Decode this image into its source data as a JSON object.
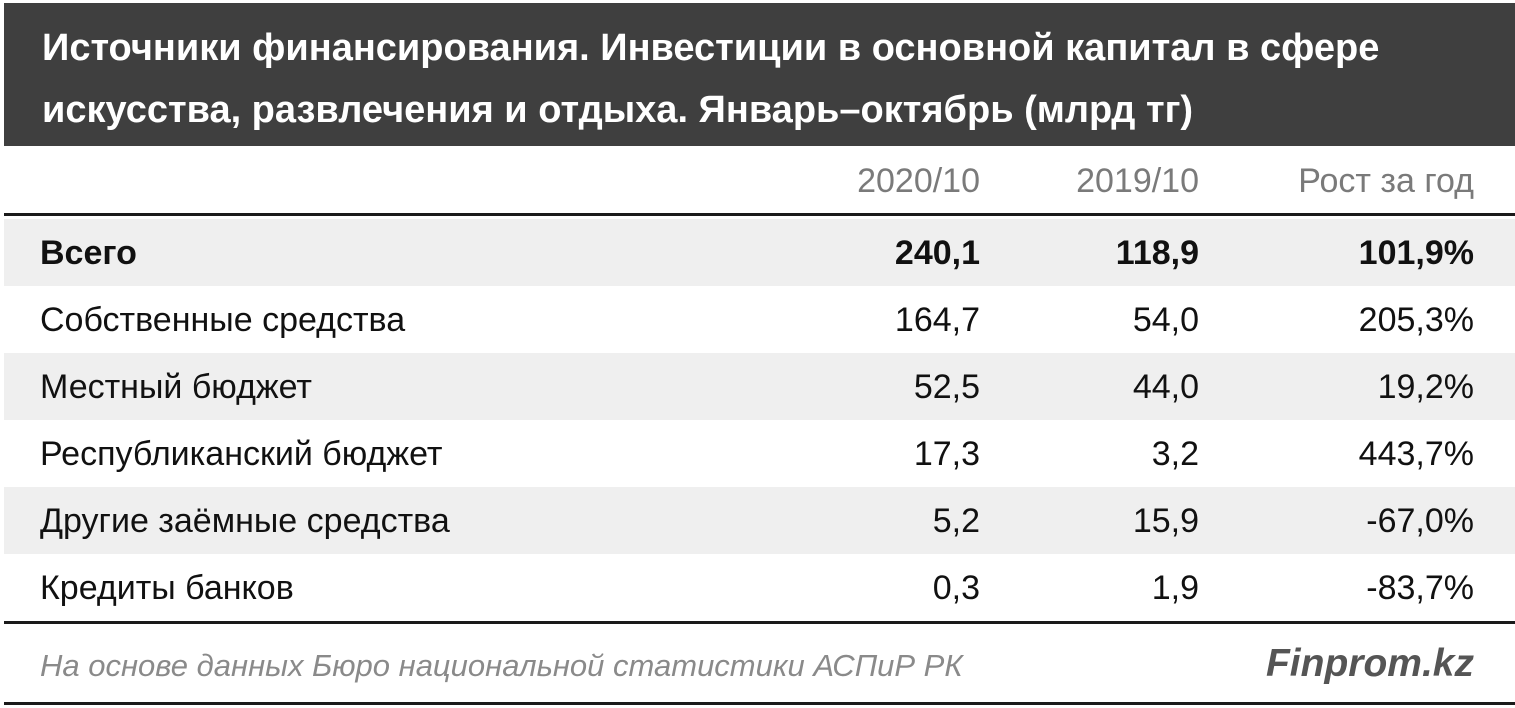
{
  "chart_data": {
    "type": "table",
    "title": "Источники финансирования. Инвестиции в основной капитал в сфере искусства, развлечения и отдыха. Январь–октябрь (млрд тг)",
    "columns": [
      "2020/10",
      "2019/10",
      "Рост за год"
    ],
    "rows": [
      {
        "label": "Всего",
        "v2020": "240,1",
        "v2019": "118,9",
        "growth": "101,9%",
        "bold": true
      },
      {
        "label": "Собственные средства",
        "v2020": "164,7",
        "v2019": "54,0",
        "growth": "205,3%"
      },
      {
        "label": "Местный бюджет",
        "v2020": "52,5",
        "v2019": "44,0",
        "growth": "19,2%"
      },
      {
        "label": "Республиканский бюджет",
        "v2020": "17,3",
        "v2019": "3,2",
        "growth": "443,7%"
      },
      {
        "label": "Другие заёмные средства",
        "v2020": "5,2",
        "v2019": "15,9",
        "growth": "-67,0%"
      },
      {
        "label": "Кредиты банков",
        "v2020": "0,3",
        "v2019": "1,9",
        "growth": "-83,7%"
      }
    ],
    "source": "На основе данных Бюро национальной статистики АСПиР РК",
    "brand": "Finprom.kz"
  },
  "colors": {
    "header_bg": "#3f3f3f",
    "row_shade": "#efefef",
    "rule": "#1a1a1a"
  }
}
